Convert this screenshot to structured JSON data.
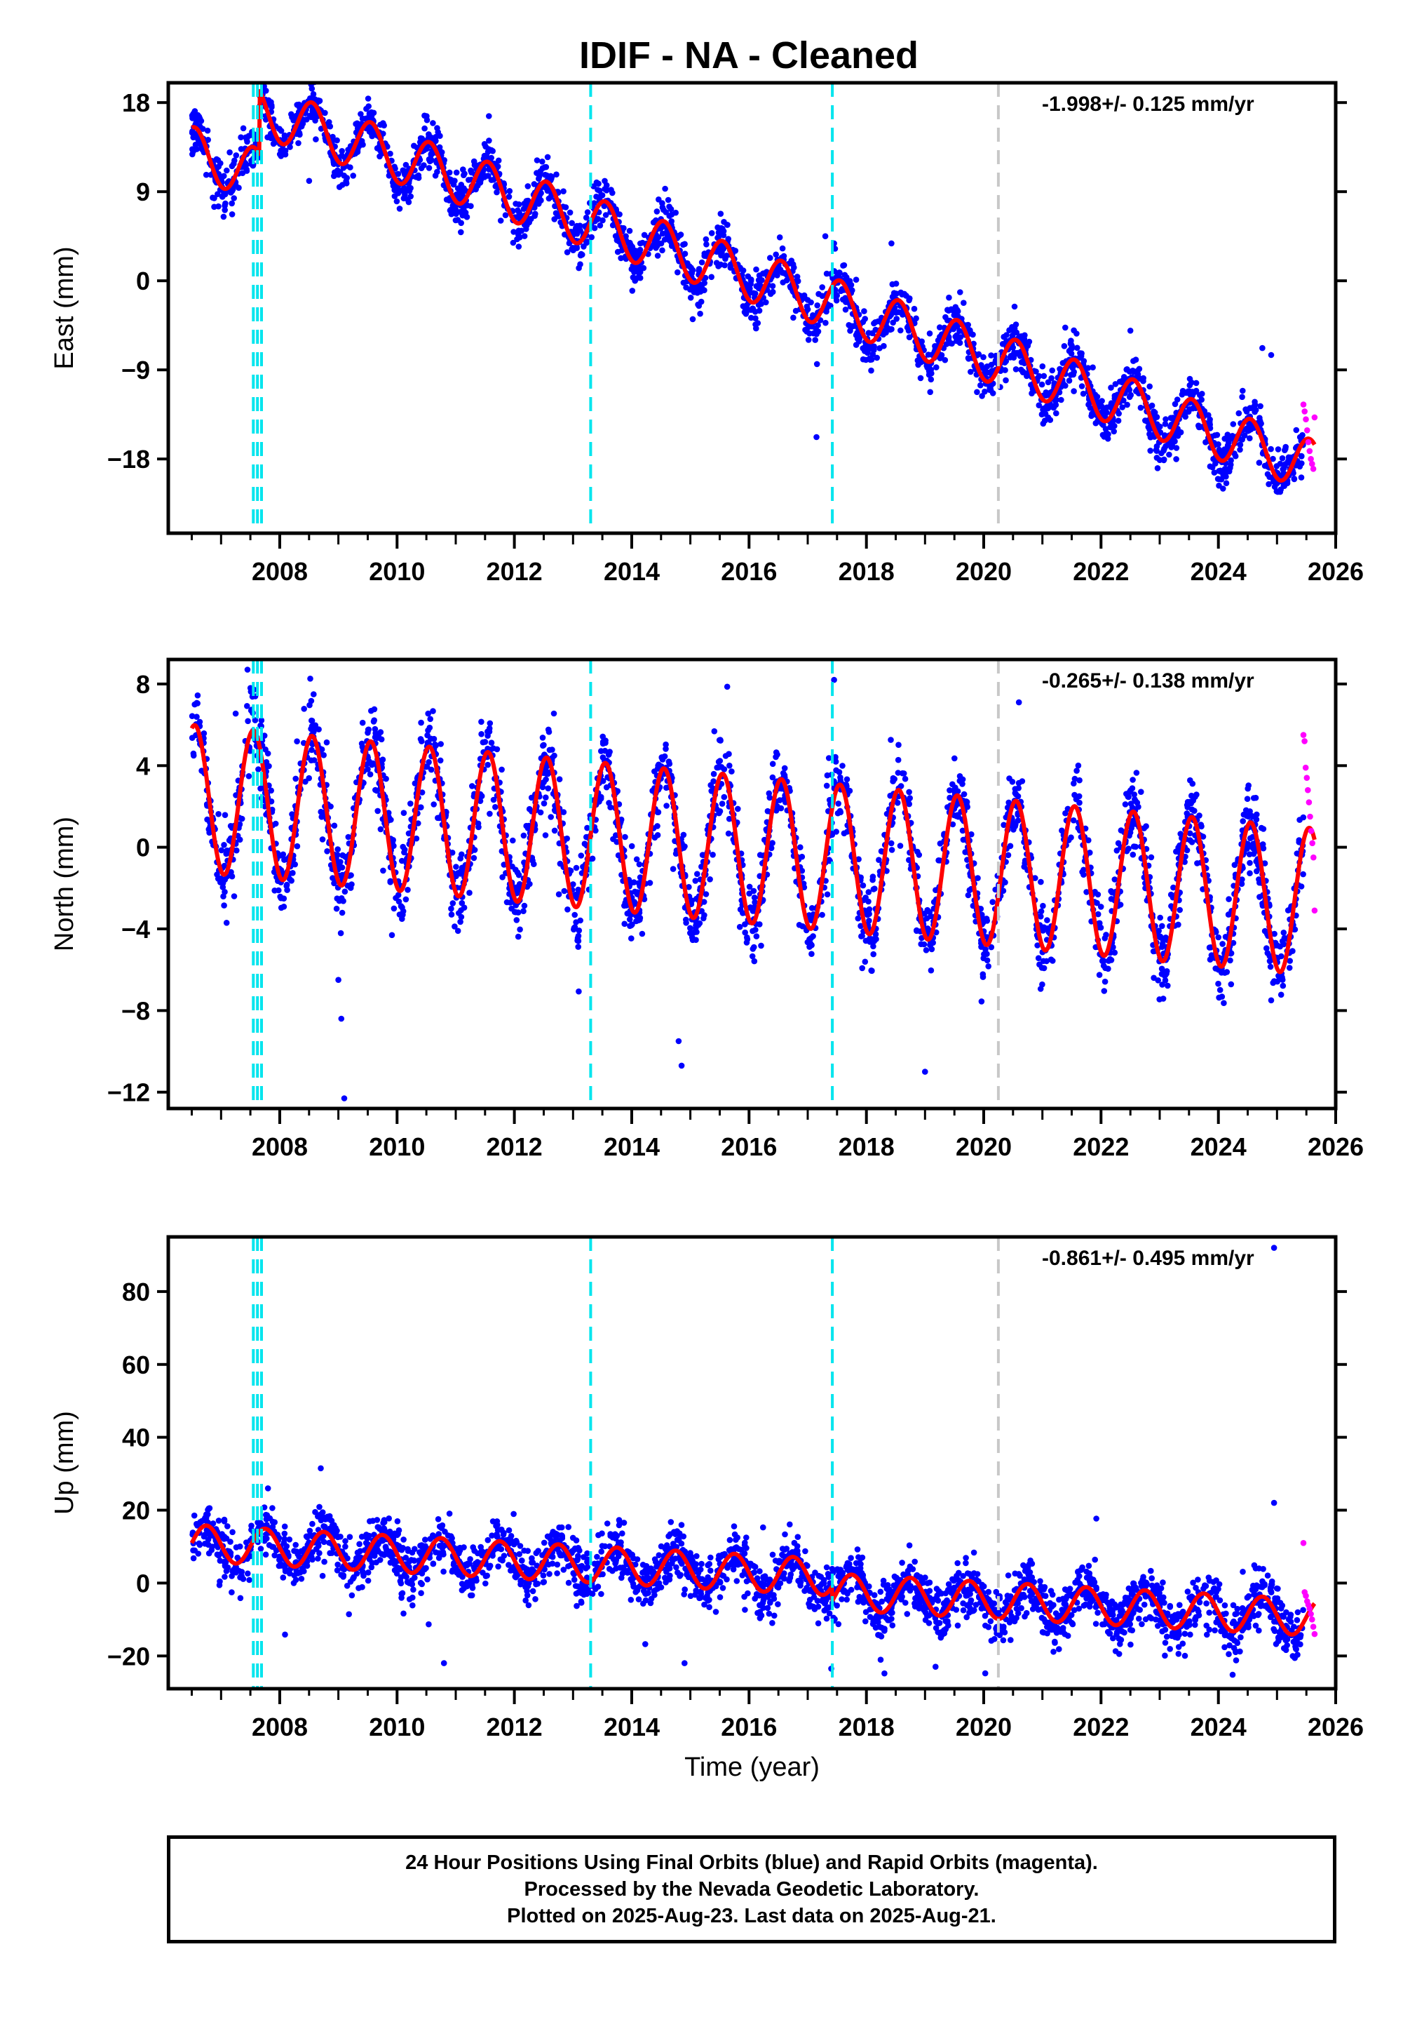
{
  "title": "IDIF  - NA - Cleaned",
  "footer": {
    "line1": "24 Hour Positions Using Final Orbits (blue) and Rapid Orbits (magenta).",
    "line2": "Processed by the Nevada Geodetic Laboratory.",
    "line3": "Plotted on 2025-Aug-23. Last data on 2025-Aug-21."
  },
  "colors": {
    "final_orbits": "#0000ff",
    "rapid_orbits": "#ff00ff",
    "model": "#ff0000",
    "equipment_change": "#00e5ee",
    "other_event": "#c8c8c8"
  },
  "chart_data": [
    {
      "type": "scatter",
      "ylabel": "East (mm)",
      "xlabel": "",
      "xlim": [
        2006.1,
        2026.0
      ],
      "ylim": [
        -25.5,
        20.0
      ],
      "xticks": [
        2008,
        2010,
        2012,
        2014,
        2016,
        2018,
        2020,
        2022,
        2024,
        2026
      ],
      "yticks": [
        -18,
        -9,
        0,
        9,
        18
      ],
      "rate_label": "-1.998+/- 0.125 mm/yr",
      "data_start": 2006.5,
      "data_end": 2025.45,
      "rapid_start": 2025.45,
      "rapid_end": 2025.64,
      "trend": {
        "intercept_at_2006_5": 13.0,
        "slope": -1.998
      },
      "offsets": [
        {
          "year": 2007.65,
          "value": 6.5
        }
      ],
      "seasonal": {
        "amplitude": 2.6,
        "peak_year_fraction": 0.55
      },
      "scatter_sd": 1.2,
      "rapid_values": [
        -12.5,
        -13.2,
        -14.0,
        -15.1,
        -16.3,
        -17.2,
        -18.0,
        -18.5,
        -19.0,
        -13.8
      ],
      "outliers": [
        {
          "x": 2009.1,
          "y": 20.4
        },
        {
          "x": 2017.3,
          "y": 4.5
        },
        {
          "x": 2024.9,
          "y": -7.5
        },
        {
          "x": 2024.75,
          "y": -6.8
        }
      ],
      "event_lines": [
        {
          "x": 2007.55,
          "kind": "equipment_change"
        },
        {
          "x": 2007.62,
          "kind": "equipment_change"
        },
        {
          "x": 2007.69,
          "kind": "equipment_change"
        },
        {
          "x": 2013.3,
          "kind": "equipment_change"
        },
        {
          "x": 2017.42,
          "kind": "equipment_change"
        },
        {
          "x": 2020.25,
          "kind": "other_event"
        }
      ]
    },
    {
      "type": "scatter",
      "ylabel": "North (mm)",
      "xlabel": "",
      "xlim": [
        2006.1,
        2026.0
      ],
      "ylim": [
        -12.8,
        9.2
      ],
      "xticks": [
        2008,
        2010,
        2012,
        2014,
        2016,
        2018,
        2020,
        2022,
        2024,
        2026
      ],
      "yticks": [
        -12,
        -8,
        -4,
        0,
        4,
        8
      ],
      "rate_label": "-0.265+/- 0.138 mm/yr",
      "data_start": 2006.5,
      "data_end": 2025.45,
      "rapid_start": 2025.45,
      "rapid_end": 2025.64,
      "trend": {
        "intercept_at_2006_5": 2.4,
        "slope": -0.265
      },
      "offsets": [],
      "seasonal": {
        "amplitude": 3.6,
        "peak_year_fraction": 0.55
      },
      "scatter_sd": 1.0,
      "rapid_values": [
        5.5,
        5.2,
        3.9,
        3.4,
        2.8,
        2.2,
        1.5,
        0.8,
        0.2,
        -0.5,
        -3.1
      ],
      "outliers": [
        {
          "x": 2007.45,
          "y": 8.7
        },
        {
          "x": 2009.0,
          "y": -6.5
        },
        {
          "x": 2009.05,
          "y": -8.4
        },
        {
          "x": 2009.1,
          "y": -12.3
        },
        {
          "x": 2014.8,
          "y": -9.5
        },
        {
          "x": 2014.85,
          "y": -10.7
        },
        {
          "x": 2017.45,
          "y": 8.2
        },
        {
          "x": 2019.0,
          "y": -11.0
        },
        {
          "x": 2020.6,
          "y": 7.1
        },
        {
          "x": 2022.9,
          "y": -6.4
        },
        {
          "x": 2024.9,
          "y": -7.5
        }
      ],
      "event_lines": [
        {
          "x": 2007.55,
          "kind": "equipment_change"
        },
        {
          "x": 2007.62,
          "kind": "equipment_change"
        },
        {
          "x": 2007.69,
          "kind": "equipment_change"
        },
        {
          "x": 2013.3,
          "kind": "equipment_change"
        },
        {
          "x": 2017.42,
          "kind": "equipment_change"
        },
        {
          "x": 2020.25,
          "kind": "other_event"
        }
      ]
    },
    {
      "type": "scatter",
      "ylabel": "Up (mm)",
      "xlabel": "Time (year)",
      "xlim": [
        2006.1,
        2026.0
      ],
      "ylim": [
        -29.0,
        95.0
      ],
      "xticks": [
        2008,
        2010,
        2012,
        2014,
        2016,
        2018,
        2020,
        2022,
        2024,
        2026
      ],
      "yticks": [
        -20,
        0,
        20,
        40,
        60,
        80
      ],
      "rate_label": "-0.861+/- 0.495 mm/yr",
      "data_start": 2006.5,
      "data_end": 2025.45,
      "rapid_start": 2025.45,
      "rapid_end": 2025.64,
      "trend": {
        "intercept_at_2006_5": 11.0,
        "slope": -0.861
      },
      "offsets": [
        {
          "year": 2017.42,
          "value": -4.0
        }
      ],
      "seasonal": {
        "amplitude": 5.0,
        "peak_year_fraction": 0.75
      },
      "scatter_sd": 3.6,
      "rapid_values": [
        11.0,
        -2.5,
        -3.5,
        -5.0,
        -6.0,
        -7.0,
        -8.5,
        -10.0,
        -12.0,
        -14.0
      ],
      "outliers": [
        {
          "x": 2008.7,
          "y": 31.5
        },
        {
          "x": 2024.95,
          "y": 92.0
        },
        {
          "x": 2024.95,
          "y": 22.0
        },
        {
          "x": 2007.8,
          "y": 26.0
        },
        {
          "x": 2010.8,
          "y": -22.0
        },
        {
          "x": 2014.9,
          "y": -22.0
        },
        {
          "x": 2017.4,
          "y": -23.5
        }
      ],
      "event_lines": [
        {
          "x": 2007.55,
          "kind": "equipment_change"
        },
        {
          "x": 2007.62,
          "kind": "equipment_change"
        },
        {
          "x": 2007.69,
          "kind": "equipment_change"
        },
        {
          "x": 2013.3,
          "kind": "equipment_change"
        },
        {
          "x": 2017.42,
          "kind": "equipment_change"
        },
        {
          "x": 2020.25,
          "kind": "other_event"
        }
      ]
    }
  ]
}
